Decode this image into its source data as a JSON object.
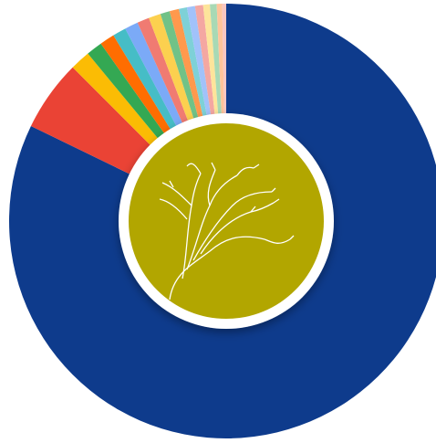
{
  "chart_data": {
    "type": "donut",
    "values": [
      82.2,
      5.3,
      1.5,
      1.2,
      1.1,
      1.0,
      1.0,
      0.9,
      0.9,
      0.7,
      0.7,
      0.6,
      0.6,
      0.6,
      0.5,
      0.5,
      0.4,
      0.3
    ],
    "colors": [
      "#0e3b8c",
      "#ea4335",
      "#fbbc04",
      "#34a853",
      "#ff6d01",
      "#46bdc6",
      "#7baaf7",
      "#f07b72",
      "#fcd04f",
      "#71c287",
      "#ff994d",
      "#7ed1d7",
      "#a1c2fa",
      "#f4a7a2",
      "#fde49b",
      "#a8d9b5",
      "#ffc49a",
      "#f7c6c2"
    ]
  }
}
